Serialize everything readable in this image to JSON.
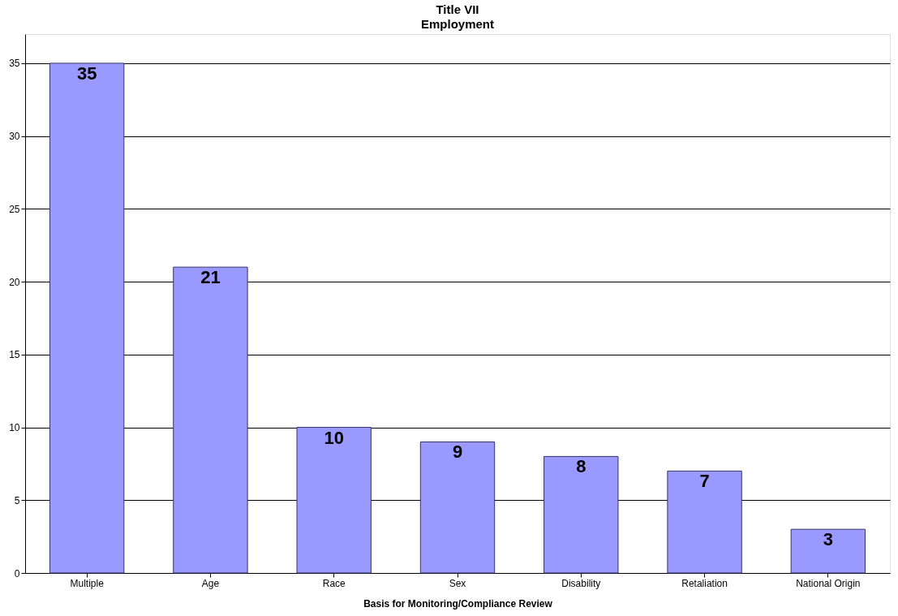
{
  "chart_data": {
    "type": "bar",
    "title": "Title VII",
    "subtitle": "Employment",
    "xlabel": "Basis for Monitoring/Compliance Review",
    "categories": [
      "Multiple",
      "Age",
      "Race",
      "Sex",
      "Disability",
      "Retaliation",
      "National Origin"
    ],
    "values": [
      35,
      21,
      10,
      9,
      8,
      7,
      3
    ],
    "color": "#9999ff",
    "ylim": [
      0,
      37
    ],
    "yticks": [
      0,
      5,
      10,
      15,
      20,
      25,
      30,
      35
    ],
    "grid": "y",
    "data_labels": true
  }
}
